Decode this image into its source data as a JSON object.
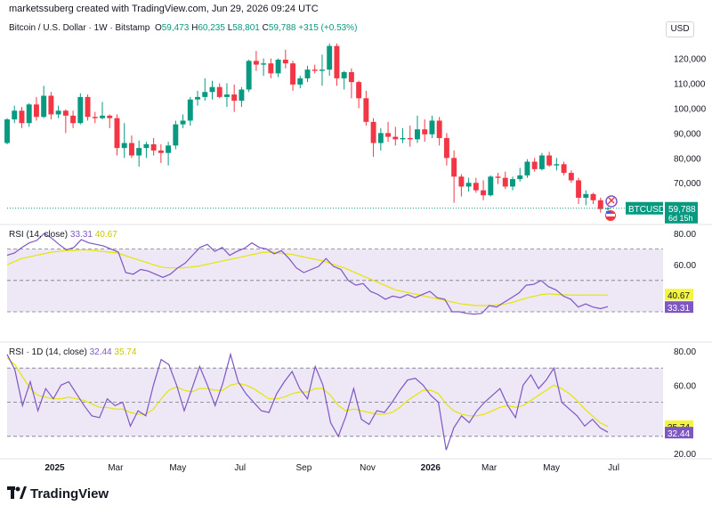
{
  "header": {
    "text": "marketssuberg created with TradingView.com, Jun 29, 2026 09:24 UTC"
  },
  "legend": {
    "symbol": "Bitcoin / U.S. Dollar · 1W · Bitstamp",
    "o_label": "O",
    "o_value": "59,473",
    "h_label": "H",
    "h_value": "60,235",
    "l_label": "L",
    "l_value": "58,801",
    "c_label": "C",
    "c_value": "59,788",
    "change": "+315 (+0.53%)"
  },
  "currency": "USD",
  "badge": {
    "symbol": "BTCUSD",
    "price": "59,788",
    "countdown": "6d 15h"
  },
  "rsi1": {
    "label": "RSI (14, close)",
    "value": "33.31",
    "ma": "40.67"
  },
  "rsi2": {
    "label": "RSI · 1D (14, close)",
    "value": "32.44",
    "ma": "35.74"
  },
  "footer": {
    "brand": "TradingView"
  },
  "colors": {
    "up": "#089981",
    "down": "#f23645",
    "rsi": "#7e57c2",
    "ma": "#f5f540",
    "band": "#ede7f6"
  },
  "chart_data": [
    {
      "type": "candlestick",
      "title": "Bitcoin / U.S. Dollar · 1W · Bitstamp",
      "price_axis_ticks": [
        "120,000",
        "110,000",
        "100,000",
        "90,000",
        "80,000",
        "70,000"
      ],
      "time_axis_ticks": [
        "2025",
        "Mar",
        "May",
        "Jul",
        "Sep",
        "Nov",
        "2026",
        "Mar",
        "May",
        "Jul"
      ],
      "last_price": 59788,
      "candles": [
        [
          86000,
          96000,
          85500,
          95500
        ],
        [
          95500,
          101000,
          94000,
          99000
        ],
        [
          99000,
          100500,
          92000,
          94000
        ],
        [
          94000,
          102000,
          92500,
          101500
        ],
        [
          101500,
          104500,
          95000,
          96500
        ],
        [
          96500,
          109000,
          96000,
          105000
        ],
        [
          105000,
          106500,
          95500,
          97500
        ],
        [
          97500,
          101000,
          96000,
          99000
        ],
        [
          99000,
          99500,
          90000,
          97000
        ],
        [
          97000,
          99000,
          92000,
          94000
        ],
        [
          94000,
          106000,
          93500,
          104500
        ],
        [
          104500,
          105500,
          95000,
          96500
        ],
        [
          96500,
          98500,
          94000,
          96000
        ],
        [
          96000,
          102500,
          95500,
          97000
        ],
        [
          97000,
          97500,
          92000,
          96000
        ],
        [
          96000,
          97500,
          81000,
          84000
        ],
        [
          84000,
          94000,
          80000,
          86000
        ],
        [
          86000,
          89000,
          80000,
          81000
        ],
        [
          81000,
          87000,
          76500,
          84000
        ],
        [
          84000,
          86500,
          80000,
          85500
        ],
        [
          85500,
          88000,
          81000,
          83000
        ],
        [
          83000,
          85500,
          78000,
          82000
        ],
        [
          82000,
          86500,
          77000,
          85000
        ],
        [
          85000,
          95000,
          83500,
          93500
        ],
        [
          93500,
          97500,
          92000,
          95000
        ],
        [
          95000,
          104500,
          93000,
          103500
        ],
        [
          103500,
          107000,
          101000,
          104500
        ],
        [
          104500,
          112000,
          103000,
          106500
        ],
        [
          106500,
          111000,
          103500,
          108500
        ],
        [
          108500,
          110000,
          104000,
          104500
        ],
        [
          104500,
          110000,
          100500,
          105500
        ],
        [
          105500,
          109500,
          98500,
          103000
        ],
        [
          103000,
          108500,
          100500,
          107500
        ],
        [
          107500,
          119500,
          106500,
          119000
        ],
        [
          119000,
          123000,
          115000,
          117500
        ],
        [
          117500,
          120000,
          113000,
          118000
        ],
        [
          118000,
          120000,
          112000,
          114000
        ],
        [
          114000,
          120000,
          112500,
          119500
        ],
        [
          119500,
          123500,
          116000,
          118000
        ],
        [
          118000,
          119000,
          107000,
          109500
        ],
        [
          109500,
          113000,
          108000,
          112000
        ],
        [
          112000,
          117000,
          110500,
          115500
        ],
        [
          115500,
          117500,
          114000,
          115000
        ],
        [
          115000,
          121500,
          109000,
          115500
        ],
        [
          115500,
          126000,
          113000,
          125000
        ],
        [
          125000,
          126000,
          109000,
          112000
        ],
        [
          112000,
          115000,
          107500,
          114500
        ],
        [
          114500,
          116000,
          104000,
          110500
        ],
        [
          110500,
          111000,
          100000,
          104000
        ],
        [
          104000,
          107000,
          93000,
          94500
        ],
        [
          94500,
          96000,
          80500,
          86000
        ],
        [
          86000,
          92000,
          83000,
          90000
        ],
        [
          90000,
          94500,
          86500,
          88500
        ],
        [
          88500,
          92500,
          85000,
          87500
        ],
        [
          87500,
          92000,
          86000,
          88000
        ],
        [
          88000,
          93000,
          84500,
          87500
        ],
        [
          87500,
          97000,
          86000,
          91500
        ],
        [
          91500,
          95500,
          86500,
          89500
        ],
        [
          89500,
          97000,
          88000,
          95000
        ],
        [
          95000,
          96500,
          85000,
          88000
        ],
        [
          88000,
          90000,
          77000,
          80000
        ],
        [
          80000,
          83000,
          62000,
          72500
        ],
        [
          72500,
          73500,
          64500,
          68500
        ],
        [
          68500,
          72000,
          66500,
          70000
        ],
        [
          70000,
          72000,
          66000,
          67000
        ],
        [
          67000,
          71000,
          63000,
          65000
        ],
        [
          65000,
          73000,
          64500,
          72500
        ],
        [
          72500,
          74000,
          69500,
          72000
        ],
        [
          72000,
          74500,
          67500,
          68500
        ],
        [
          68500,
          72500,
          67000,
          71500
        ],
        [
          71500,
          76000,
          70500,
          73000
        ],
        [
          73000,
          79500,
          72000,
          78500
        ],
        [
          78500,
          80000,
          74500,
          75500
        ],
        [
          75500,
          82000,
          75000,
          81000
        ],
        [
          81000,
          82500,
          76500,
          77000
        ],
        [
          77000,
          80000,
          75000,
          77500
        ],
        [
          77500,
          78500,
          73000,
          74000
        ],
        [
          74000,
          75000,
          70000,
          71000
        ],
        [
          71000,
          72000,
          61500,
          64000
        ],
        [
          64000,
          67000,
          61000,
          65500
        ],
        [
          65500,
          66000,
          61500,
          63000
        ],
        [
          63000,
          64000,
          58000,
          59473
        ],
        [
          59473,
          60235,
          58801,
          59788
        ]
      ]
    },
    {
      "type": "line",
      "title": "RSI (14, close)",
      "y_axis_ticks": [
        "80.00",
        "60.00"
      ],
      "series": [
        {
          "name": "RSI (14, close)",
          "last": 33.31,
          "values": [
            66,
            67.5,
            71,
            74,
            75.5,
            80,
            77,
            73,
            69.5,
            71,
            76,
            74,
            73,
            72,
            70,
            68,
            55,
            54,
            57,
            56,
            54,
            52,
            54,
            58,
            61,
            66,
            71,
            73,
            68.5,
            71,
            66,
            68.5,
            70.5,
            74,
            71,
            70,
            67,
            69,
            64,
            58,
            55,
            57,
            59,
            64,
            59,
            57,
            50,
            47,
            48,
            43,
            41,
            38,
            40,
            39,
            41,
            39,
            41,
            43,
            39,
            38,
            30,
            30,
            29,
            28.5,
            29,
            34,
            33,
            36,
            39,
            42,
            47,
            47.5,
            50,
            46,
            44,
            40,
            38,
            33,
            35,
            33,
            32,
            33.31
          ]
        },
        {
          "name": "RSI-based MA",
          "last": 40.67,
          "values": [
            60,
            62,
            64,
            65,
            66,
            67,
            68,
            68.5,
            69,
            69,
            69.5,
            69.5,
            69,
            68.5,
            68,
            67.5,
            66,
            64.5,
            63,
            61.5,
            60,
            58.5,
            58,
            58,
            58,
            58.5,
            59,
            60,
            61,
            62,
            63,
            64,
            65,
            66,
            67,
            68,
            68,
            67.5,
            67,
            66.5,
            65.5,
            64.5,
            63.5,
            62.5,
            61,
            59.5,
            58,
            56,
            54,
            52,
            50,
            48,
            46,
            44,
            43,
            42,
            41,
            40,
            39,
            38,
            37,
            36,
            35,
            34.5,
            34,
            34,
            34,
            34.5,
            35,
            36,
            37.5,
            39,
            40,
            41,
            41.5,
            41,
            40.8,
            40.67,
            40.67,
            40.67,
            40.67,
            40.67,
            40.67
          ]
        }
      ]
    },
    {
      "type": "line",
      "title": "RSI · 1D (14, close)",
      "y_axis_ticks": [
        "80.00",
        "60.00",
        "20.00"
      ],
      "series": [
        {
          "name": "RSI · 1D (14, close)",
          "last": 32.44,
          "values": [
            78,
            69,
            48,
            62,
            45,
            58,
            52,
            60,
            62,
            55,
            48,
            42,
            41,
            52,
            48,
            50,
            36,
            45,
            42,
            60,
            75,
            72,
            60,
            45,
            58,
            71,
            60,
            48,
            61,
            78,
            62,
            55,
            50,
            45,
            44,
            55,
            62,
            68,
            58,
            52,
            71,
            60,
            38,
            30,
            42,
            58,
            40,
            37,
            45,
            44,
            50,
            57,
            63,
            64,
            60,
            54,
            50,
            22,
            35,
            42,
            38,
            45,
            50,
            54,
            58,
            48,
            41,
            60,
            66,
            58,
            63,
            70,
            50,
            46,
            42,
            36,
            40,
            35,
            32.44
          ]
        },
        {
          "name": "RSI-based MA",
          "last": 35.74,
          "values": [
            76,
            72,
            65,
            58,
            54,
            53,
            52,
            52,
            53,
            52,
            51,
            49,
            47,
            47,
            46,
            46,
            44,
            43,
            43,
            46,
            52,
            57,
            59,
            57,
            56,
            58,
            58,
            57,
            57,
            60,
            61,
            60,
            58,
            55,
            52,
            52,
            53,
            55,
            56,
            56,
            58,
            58,
            54,
            48,
            45,
            46,
            45,
            44,
            43,
            43,
            44,
            47,
            51,
            54,
            57,
            57,
            55,
            49,
            45,
            43,
            42,
            42,
            43,
            45,
            47,
            48,
            47,
            48,
            51,
            54,
            57,
            60,
            58,
            55,
            51,
            46,
            42,
            38,
            35.74
          ]
        }
      ]
    }
  ]
}
